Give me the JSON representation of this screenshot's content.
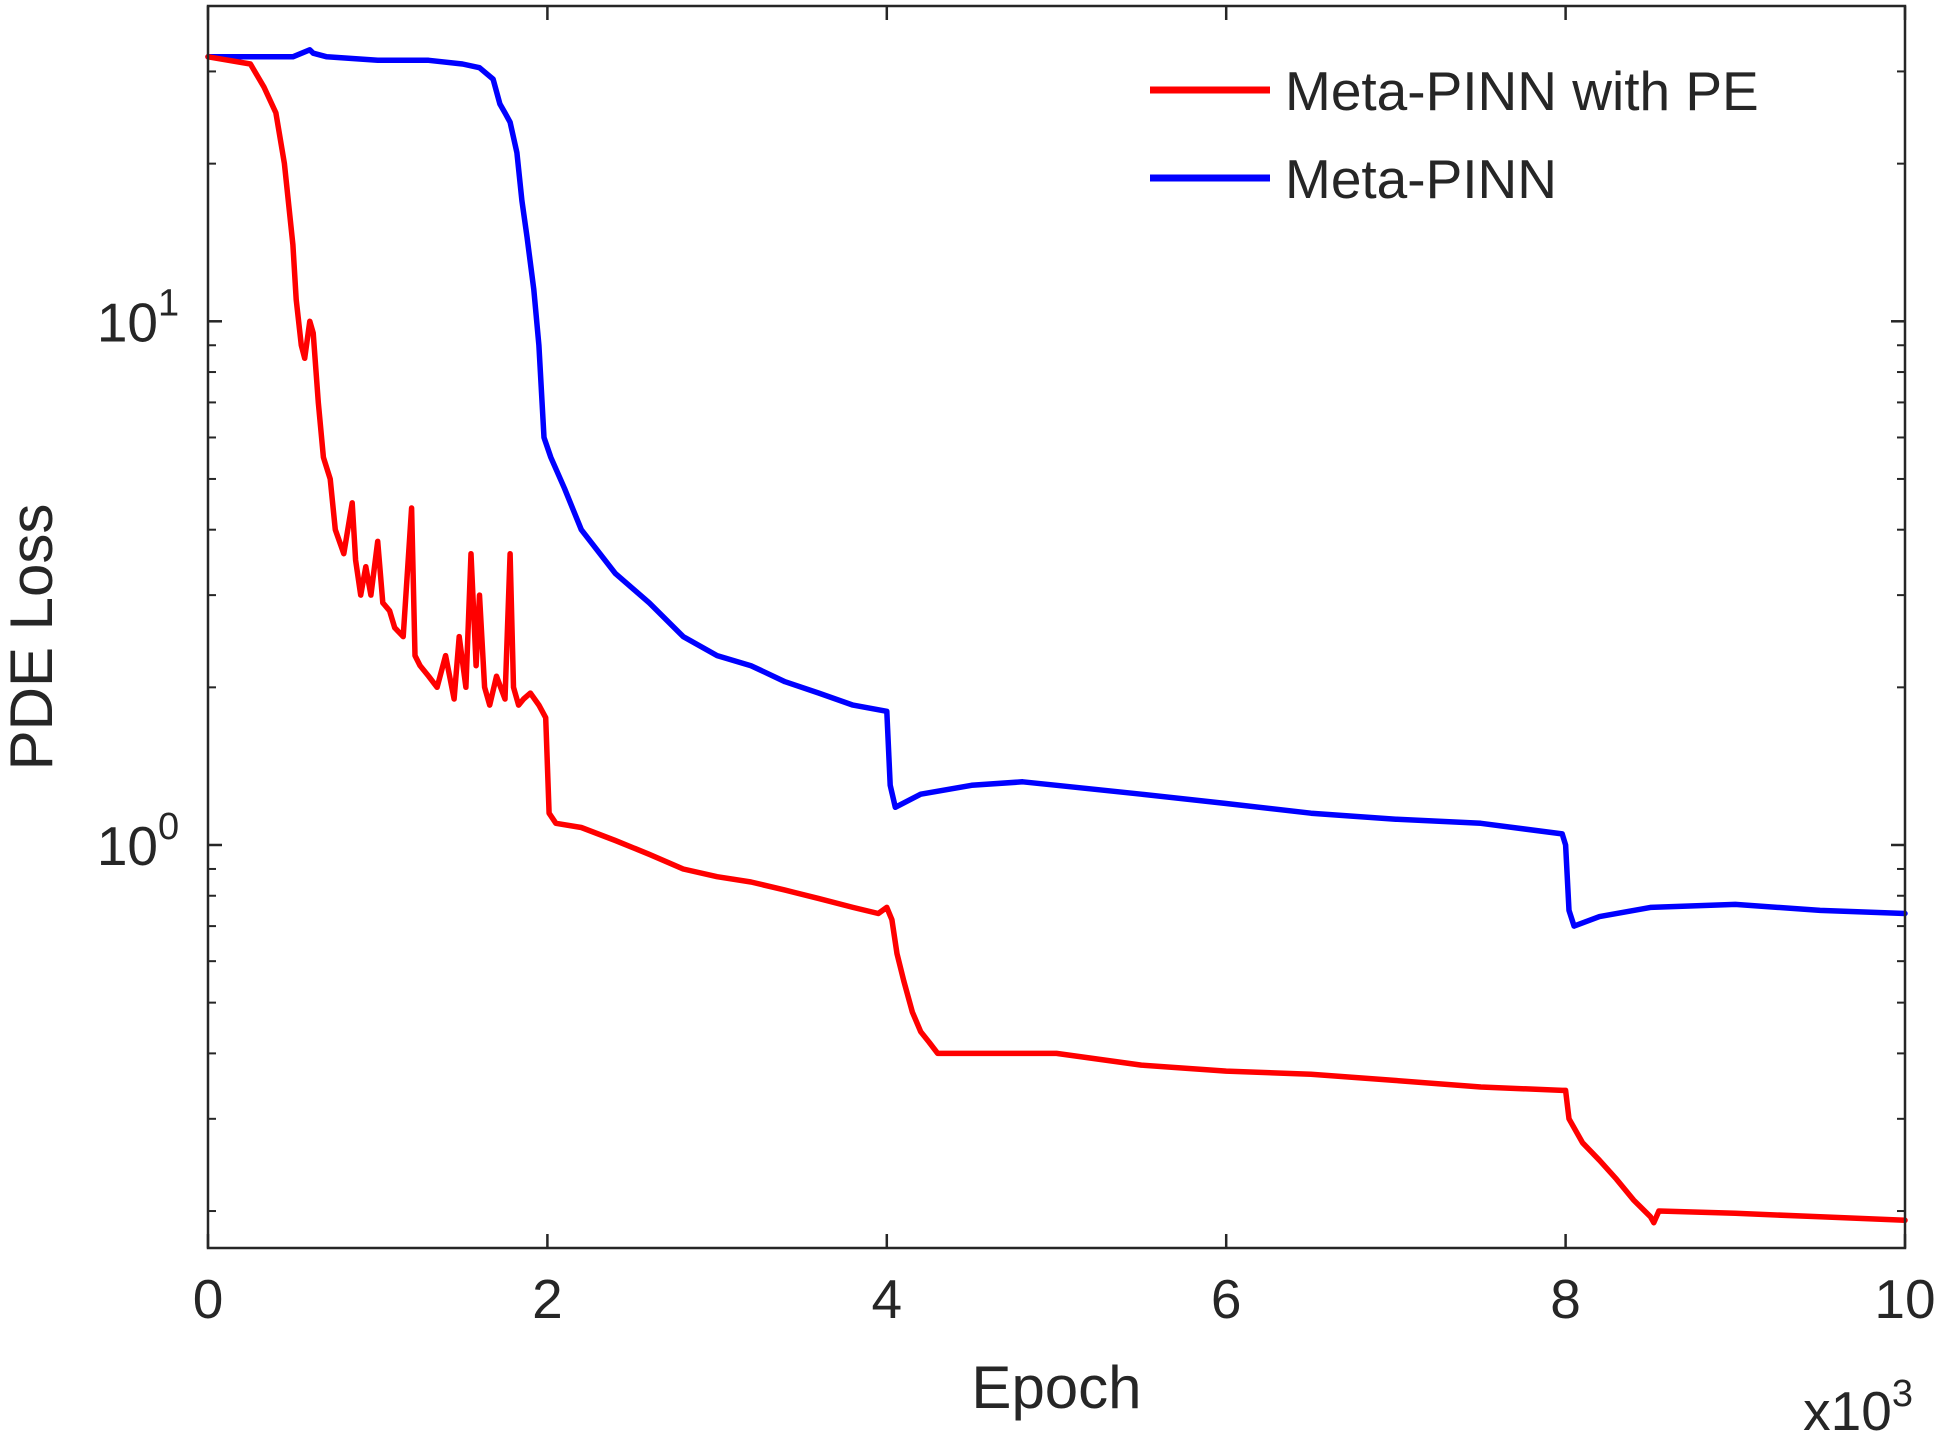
{
  "chart_data": {
    "type": "line",
    "xlabel": "Epoch",
    "ylabel": "PDE Loss",
    "x_multiplier_label": {
      "base": "x10",
      "exponent": "3"
    },
    "xlim": [
      0,
      10
    ],
    "ylim": [
      0.17,
      40
    ],
    "yscale": "log",
    "x_ticks": [
      0,
      2,
      4,
      6,
      8,
      10
    ],
    "x_tick_labels": [
      "0",
      "2",
      "4",
      "6",
      "8",
      "10"
    ],
    "y_ticks": [
      {
        "value": 1,
        "base": "10",
        "exponent": "0"
      },
      {
        "value": 10,
        "base": "10",
        "exponent": "1"
      }
    ],
    "grid": false,
    "legend_position": "top-right",
    "series": [
      {
        "name": "Meta-PINN with PE",
        "color": "#ff0000",
        "x": [
          0,
          0.25,
          0.33,
          0.4,
          0.45,
          0.5,
          0.52,
          0.55,
          0.57,
          0.6,
          0.62,
          0.65,
          0.68,
          0.72,
          0.75,
          0.8,
          0.85,
          0.87,
          0.9,
          0.93,
          0.96,
          1.0,
          1.03,
          1.07,
          1.1,
          1.15,
          1.2,
          1.22,
          1.25,
          1.3,
          1.35,
          1.4,
          1.45,
          1.48,
          1.52,
          1.55,
          1.58,
          1.6,
          1.63,
          1.66,
          1.7,
          1.75,
          1.78,
          1.8,
          1.83,
          1.86,
          1.9,
          1.95,
          1.99,
          2.01,
          2.05,
          2.2,
          2.4,
          2.6,
          2.8,
          3.0,
          3.2,
          3.4,
          3.6,
          3.8,
          3.95,
          4.0,
          4.03,
          4.06,
          4.1,
          4.15,
          4.2,
          4.25,
          4.3,
          4.5,
          5.0,
          5.5,
          6.0,
          6.5,
          7.0,
          7.5,
          7.98,
          8.0,
          8.02,
          8.1,
          8.2,
          8.3,
          8.4,
          8.5,
          8.52,
          8.55,
          9.0,
          9.5,
          10.0
        ],
        "y": [
          32,
          31,
          28,
          25,
          20,
          14,
          11,
          9,
          8.5,
          10,
          9.5,
          7,
          5.5,
          5,
          4.0,
          3.6,
          4.5,
          3.5,
          3.0,
          3.4,
          3.0,
          3.8,
          2.9,
          2.8,
          2.6,
          2.5,
          4.4,
          2.3,
          2.2,
          2.1,
          2.0,
          2.3,
          1.9,
          2.5,
          2.0,
          3.6,
          2.2,
          3.0,
          2.0,
          1.85,
          2.1,
          1.9,
          3.6,
          2.0,
          1.85,
          1.9,
          1.95,
          1.85,
          1.75,
          1.15,
          1.1,
          1.08,
          1.02,
          0.96,
          0.9,
          0.87,
          0.85,
          0.82,
          0.79,
          0.76,
          0.74,
          0.76,
          0.72,
          0.62,
          0.55,
          0.48,
          0.44,
          0.42,
          0.4,
          0.4,
          0.4,
          0.38,
          0.37,
          0.365,
          0.355,
          0.345,
          0.34,
          0.34,
          0.3,
          0.27,
          0.25,
          0.23,
          0.21,
          0.195,
          0.19,
          0.2,
          0.198,
          0.195,
          0.192
        ]
      },
      {
        "name": "Meta-PINN",
        "color": "#0000ff",
        "x": [
          0,
          0.5,
          0.6,
          0.62,
          0.7,
          1.0,
          1.3,
          1.5,
          1.6,
          1.68,
          1.72,
          1.75,
          1.78,
          1.82,
          1.85,
          1.88,
          1.92,
          1.95,
          1.98,
          2.02,
          2.1,
          2.2,
          2.4,
          2.6,
          2.8,
          3.0,
          3.2,
          3.4,
          3.6,
          3.8,
          4.0,
          4.02,
          4.05,
          4.2,
          4.5,
          4.8,
          5.0,
          5.5,
          6.0,
          6.5,
          7.0,
          7.5,
          7.98,
          8.0,
          8.02,
          8.05,
          8.2,
          8.5,
          9.0,
          9.5,
          10.0
        ],
        "y": [
          32,
          32,
          33,
          32.5,
          32,
          31.5,
          31.5,
          31,
          30.5,
          29,
          26,
          25,
          24,
          21,
          17,
          14.5,
          11.5,
          9.0,
          6.0,
          5.5,
          4.8,
          4.0,
          3.3,
          2.9,
          2.5,
          2.3,
          2.2,
          2.05,
          1.95,
          1.85,
          1.8,
          1.3,
          1.18,
          1.25,
          1.3,
          1.32,
          1.3,
          1.25,
          1.2,
          1.15,
          1.12,
          1.1,
          1.05,
          1.0,
          0.75,
          0.7,
          0.73,
          0.76,
          0.77,
          0.75,
          0.74
        ]
      }
    ]
  }
}
